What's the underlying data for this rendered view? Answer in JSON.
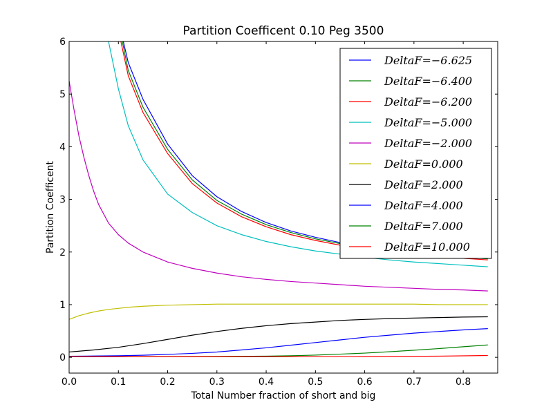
{
  "chart_data": {
    "type": "line",
    "title": "Partition Coefficent 0.10 Peg 3500",
    "xlabel": "Total Number fraction of short and big",
    "ylabel": "Partition Coefficent",
    "xlim": [
      0.0,
      0.87
    ],
    "ylim": [
      -0.3,
      6.0
    ],
    "xticks": [
      "0.0",
      "0.1",
      "0.2",
      "0.3",
      "0.4",
      "0.5",
      "0.6",
      "0.7",
      "0.8"
    ],
    "yticks": [
      "0",
      "1",
      "2",
      "3",
      "4",
      "5",
      "6"
    ],
    "grid": false,
    "legend_position": "top-right",
    "series": [
      {
        "name": "DeltaF=−6.625",
        "color": "#0000ff",
        "x": [
          0.0,
          0.11,
          0.12,
          0.15,
          0.2,
          0.25,
          0.3,
          0.35,
          0.4,
          0.45,
          0.5,
          0.55,
          0.6,
          0.65,
          0.7,
          0.75,
          0.8,
          0.85
        ],
        "y": [
          null,
          6.0,
          5.6,
          4.9,
          4.05,
          3.45,
          3.05,
          2.77,
          2.56,
          2.4,
          2.28,
          2.18,
          2.1,
          2.04,
          1.99,
          1.95,
          1.92,
          1.89
        ]
      },
      {
        "name": "DeltaF=−6.400",
        "color": "#008000",
        "x": [
          0.0,
          0.108,
          0.12,
          0.15,
          0.2,
          0.25,
          0.3,
          0.35,
          0.4,
          0.45,
          0.5,
          0.55,
          0.6,
          0.65,
          0.7,
          0.75,
          0.8,
          0.85
        ],
        "y": [
          null,
          6.0,
          5.45,
          4.75,
          3.95,
          3.37,
          2.98,
          2.72,
          2.52,
          2.37,
          2.25,
          2.16,
          2.08,
          2.02,
          1.97,
          1.93,
          1.9,
          1.87
        ]
      },
      {
        "name": "DeltaF=−6.200",
        "color": "#ff0000",
        "x": [
          0.0,
          0.105,
          0.12,
          0.15,
          0.2,
          0.25,
          0.3,
          0.35,
          0.4,
          0.45,
          0.5,
          0.55,
          0.6,
          0.65,
          0.7,
          0.75,
          0.8,
          0.85
        ],
        "y": [
          null,
          6.0,
          5.35,
          4.65,
          3.87,
          3.3,
          2.93,
          2.67,
          2.48,
          2.33,
          2.22,
          2.13,
          2.06,
          2.0,
          1.95,
          1.91,
          1.88,
          1.85
        ]
      },
      {
        "name": "DeltaF=−5.000",
        "color": "#00bfbf",
        "x": [
          0.0,
          0.08,
          0.1,
          0.12,
          0.15,
          0.2,
          0.25,
          0.3,
          0.35,
          0.4,
          0.45,
          0.5,
          0.55,
          0.6,
          0.65,
          0.7,
          0.75,
          0.8,
          0.85
        ],
        "y": [
          null,
          6.0,
          5.1,
          4.4,
          3.75,
          3.1,
          2.75,
          2.5,
          2.33,
          2.2,
          2.1,
          2.02,
          1.96,
          1.9,
          1.85,
          1.81,
          1.78,
          1.75,
          1.72
        ]
      },
      {
        "name": "DeltaF=−2.000",
        "color": "#bf00bf",
        "x": [
          0.0,
          0.01,
          0.02,
          0.03,
          0.04,
          0.05,
          0.06,
          0.08,
          0.1,
          0.12,
          0.15,
          0.2,
          0.25,
          0.3,
          0.35,
          0.4,
          0.45,
          0.5,
          0.55,
          0.6,
          0.65,
          0.7,
          0.75,
          0.8,
          0.85
        ],
        "y": [
          5.25,
          4.7,
          4.2,
          3.8,
          3.45,
          3.15,
          2.9,
          2.55,
          2.33,
          2.17,
          2.0,
          1.81,
          1.69,
          1.6,
          1.53,
          1.48,
          1.44,
          1.41,
          1.38,
          1.35,
          1.33,
          1.31,
          1.29,
          1.28,
          1.26
        ]
      },
      {
        "name": "DeltaF=0.000",
        "color": "#bfbf00",
        "x": [
          0.0,
          0.02,
          0.04,
          0.06,
          0.08,
          0.1,
          0.12,
          0.15,
          0.2,
          0.25,
          0.3,
          0.35,
          0.4,
          0.45,
          0.5,
          0.55,
          0.6,
          0.65,
          0.7,
          0.75,
          0.8,
          0.85
        ],
        "y": [
          0.72,
          0.79,
          0.84,
          0.88,
          0.91,
          0.93,
          0.95,
          0.97,
          0.99,
          1.0,
          1.01,
          1.01,
          1.01,
          1.01,
          1.01,
          1.01,
          1.01,
          1.01,
          1.01,
          1.0,
          1.0,
          1.0
        ]
      },
      {
        "name": "DeltaF=2.000",
        "color": "#000000",
        "x": [
          0.0,
          0.05,
          0.1,
          0.15,
          0.2,
          0.25,
          0.3,
          0.35,
          0.4,
          0.45,
          0.5,
          0.55,
          0.6,
          0.65,
          0.7,
          0.75,
          0.8,
          0.85
        ],
        "y": [
          0.1,
          0.14,
          0.19,
          0.26,
          0.34,
          0.42,
          0.49,
          0.55,
          0.6,
          0.64,
          0.67,
          0.7,
          0.72,
          0.735,
          0.745,
          0.755,
          0.765,
          0.77
        ]
      },
      {
        "name": "DeltaF=4.000",
        "color": "#0000ff",
        "x": [
          0.0,
          0.05,
          0.1,
          0.15,
          0.2,
          0.25,
          0.3,
          0.35,
          0.4,
          0.45,
          0.5,
          0.55,
          0.6,
          0.65,
          0.7,
          0.75,
          0.8,
          0.85
        ],
        "y": [
          0.02,
          0.025,
          0.03,
          0.04,
          0.055,
          0.075,
          0.1,
          0.14,
          0.18,
          0.23,
          0.28,
          0.33,
          0.38,
          0.42,
          0.46,
          0.49,
          0.52,
          0.545
        ]
      },
      {
        "name": "DeltaF=7.000",
        "color": "#008000",
        "x": [
          0.0,
          0.1,
          0.2,
          0.3,
          0.4,
          0.45,
          0.5,
          0.55,
          0.6,
          0.65,
          0.7,
          0.75,
          0.8,
          0.85
        ],
        "y": [
          0.01,
          0.01,
          0.012,
          0.015,
          0.022,
          0.03,
          0.042,
          0.06,
          0.08,
          0.105,
          0.135,
          0.165,
          0.2,
          0.235
        ]
      },
      {
        "name": "DeltaF=10.000",
        "color": "#ff0000",
        "x": [
          0.0,
          0.2,
          0.4,
          0.5,
          0.6,
          0.65,
          0.7,
          0.75,
          0.8,
          0.85
        ],
        "y": [
          0.01,
          0.01,
          0.01,
          0.011,
          0.013,
          0.015,
          0.018,
          0.022,
          0.028,
          0.035
        ]
      }
    ]
  }
}
